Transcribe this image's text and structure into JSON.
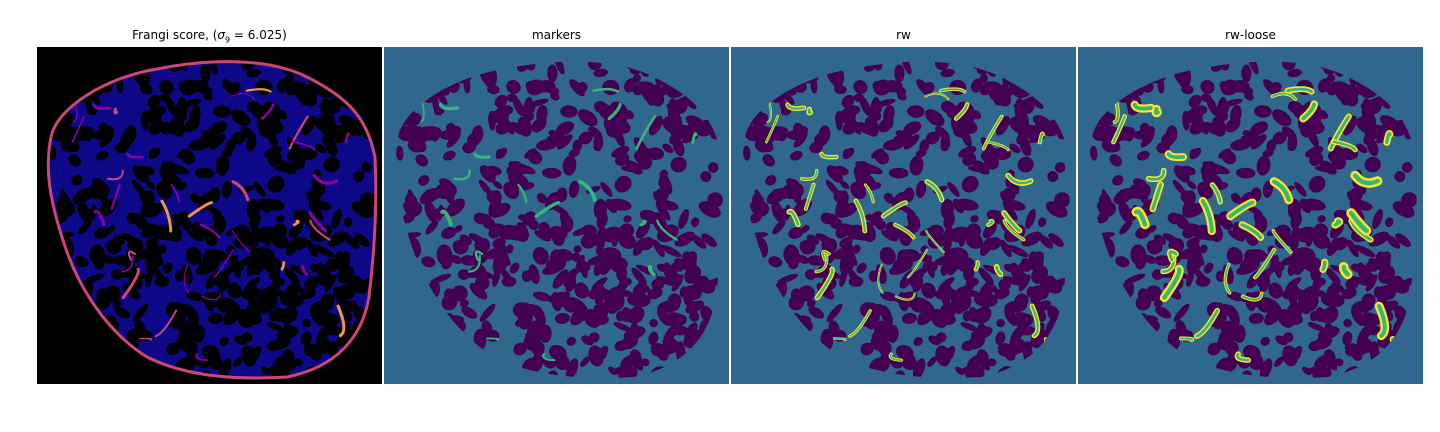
{
  "figure": {
    "panels": [
      {
        "title_prefix": "Frangi score, (",
        "title_sigma": "σ",
        "title_sub": "9",
        "title_suffix": " = 6.025)",
        "kind": "frangi",
        "background": "#000000"
      },
      {
        "title": "markers",
        "kind": "markers",
        "background": "#30678d"
      },
      {
        "title": "rw",
        "kind": "rw",
        "background": "#30678d"
      },
      {
        "title": "rw-loose",
        "kind": "rw-loose",
        "background": "#30678d"
      }
    ],
    "colors": {
      "viridis_purple": "#440154",
      "viridis_blue": "#30678d",
      "viridis_green": "#35b779",
      "viridis_yellow": "#fde725",
      "plasma_dark": "#0d0887",
      "plasma_mid": "#7e03a8",
      "plasma_pink": "#cc4778",
      "plasma_orange": "#f89540",
      "plasma_yellow": "#f0f921"
    }
  }
}
